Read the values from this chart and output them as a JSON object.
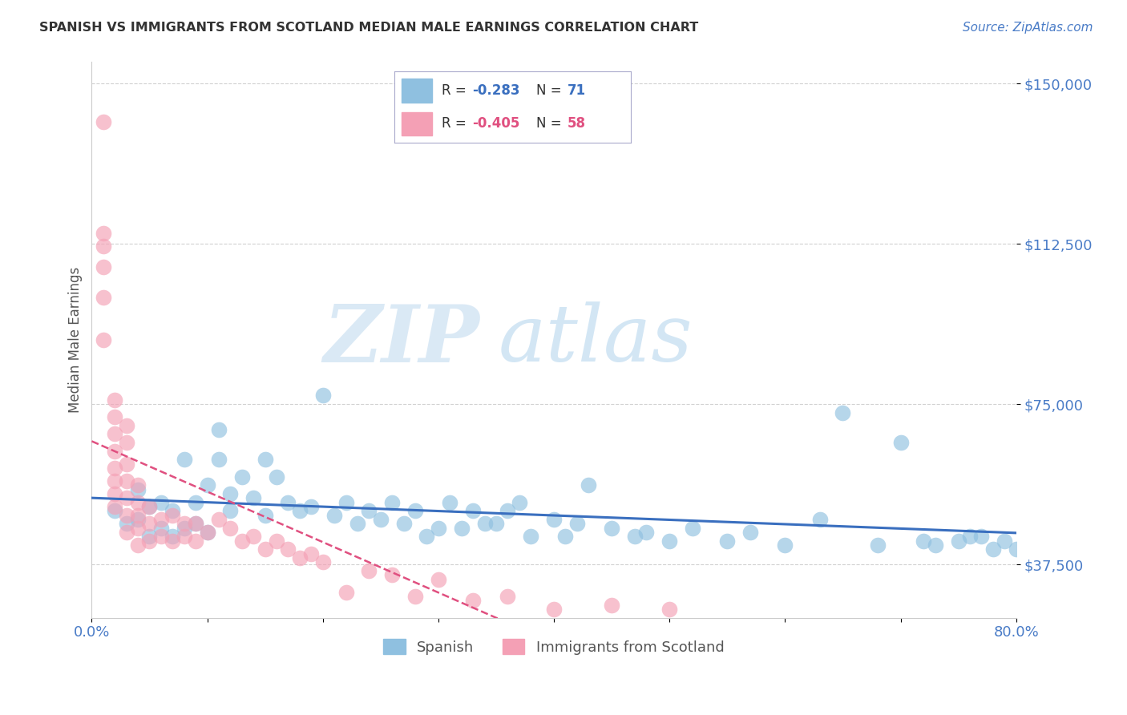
{
  "title": "SPANISH VS IMMIGRANTS FROM SCOTLAND MEDIAN MALE EARNINGS CORRELATION CHART",
  "source": "Source: ZipAtlas.com",
  "ylabel": "Median Male Earnings",
  "xlim": [
    0.0,
    0.8
  ],
  "ylim": [
    25000,
    155000
  ],
  "yticks": [
    37500,
    75000,
    112500,
    150000
  ],
  "ytick_labels": [
    "$37,500",
    "$75,000",
    "$112,500",
    "$150,000"
  ],
  "xticks": [
    0.0,
    0.1,
    0.2,
    0.3,
    0.4,
    0.5,
    0.6,
    0.7,
    0.8
  ],
  "xtick_labels": [
    "0.0%",
    "",
    "",
    "",
    "",
    "",
    "",
    "",
    "80.0%"
  ],
  "blue_color": "#8FC0E0",
  "pink_color": "#F4A0B5",
  "blue_line_color": "#3A6FBF",
  "pink_line_color": "#E05080",
  "title_color": "#333333",
  "axis_color": "#4A7CC7",
  "legend_label1": "Spanish",
  "legend_label2": "Immigrants from Scotland",
  "watermark_zip": "ZIP",
  "watermark_atlas": "atlas",
  "background_color": "#FFFFFF",
  "grid_color": "#CCCCCC",
  "blue_scatter_x": [
    0.02,
    0.03,
    0.04,
    0.04,
    0.05,
    0.05,
    0.06,
    0.06,
    0.07,
    0.07,
    0.08,
    0.08,
    0.09,
    0.09,
    0.1,
    0.1,
    0.11,
    0.11,
    0.12,
    0.12,
    0.13,
    0.14,
    0.15,
    0.15,
    0.16,
    0.17,
    0.18,
    0.19,
    0.2,
    0.21,
    0.22,
    0.23,
    0.24,
    0.25,
    0.26,
    0.27,
    0.28,
    0.29,
    0.3,
    0.31,
    0.32,
    0.33,
    0.34,
    0.35,
    0.36,
    0.37,
    0.38,
    0.4,
    0.41,
    0.42,
    0.43,
    0.45,
    0.47,
    0.48,
    0.5,
    0.52,
    0.55,
    0.57,
    0.6,
    0.63,
    0.65,
    0.68,
    0.7,
    0.72,
    0.73,
    0.75,
    0.76,
    0.77,
    0.78,
    0.79,
    0.8
  ],
  "blue_scatter_y": [
    50000,
    47000,
    55000,
    48000,
    51000,
    44000,
    46000,
    52000,
    50000,
    44000,
    62000,
    46000,
    52000,
    47000,
    56000,
    45000,
    69000,
    62000,
    54000,
    50000,
    58000,
    53000,
    62000,
    49000,
    58000,
    52000,
    50000,
    51000,
    77000,
    49000,
    52000,
    47000,
    50000,
    48000,
    52000,
    47000,
    50000,
    44000,
    46000,
    52000,
    46000,
    50000,
    47000,
    47000,
    50000,
    52000,
    44000,
    48000,
    44000,
    47000,
    56000,
    46000,
    44000,
    45000,
    43000,
    46000,
    43000,
    45000,
    42000,
    48000,
    73000,
    42000,
    66000,
    43000,
    42000,
    43000,
    44000,
    44000,
    41000,
    43000,
    41000
  ],
  "pink_scatter_x": [
    0.01,
    0.01,
    0.01,
    0.01,
    0.01,
    0.01,
    0.02,
    0.02,
    0.02,
    0.02,
    0.02,
    0.02,
    0.02,
    0.02,
    0.03,
    0.03,
    0.03,
    0.03,
    0.03,
    0.03,
    0.03,
    0.04,
    0.04,
    0.04,
    0.04,
    0.04,
    0.05,
    0.05,
    0.05,
    0.06,
    0.06,
    0.07,
    0.07,
    0.08,
    0.08,
    0.09,
    0.09,
    0.1,
    0.11,
    0.12,
    0.13,
    0.14,
    0.15,
    0.16,
    0.17,
    0.18,
    0.19,
    0.2,
    0.22,
    0.24,
    0.26,
    0.28,
    0.3,
    0.33,
    0.36,
    0.4,
    0.45,
    0.5
  ],
  "pink_scatter_y": [
    141000,
    115000,
    112000,
    107000,
    100000,
    90000,
    76000,
    72000,
    68000,
    64000,
    60000,
    57000,
    54000,
    51000,
    70000,
    66000,
    61000,
    57000,
    53000,
    49000,
    45000,
    56000,
    52000,
    49000,
    46000,
    42000,
    51000,
    47000,
    43000,
    48000,
    44000,
    49000,
    43000,
    47000,
    44000,
    47000,
    43000,
    45000,
    48000,
    46000,
    43000,
    44000,
    41000,
    43000,
    41000,
    39000,
    40000,
    38000,
    31000,
    36000,
    35000,
    30000,
    34000,
    29000,
    30000,
    27000,
    28000,
    27000
  ]
}
